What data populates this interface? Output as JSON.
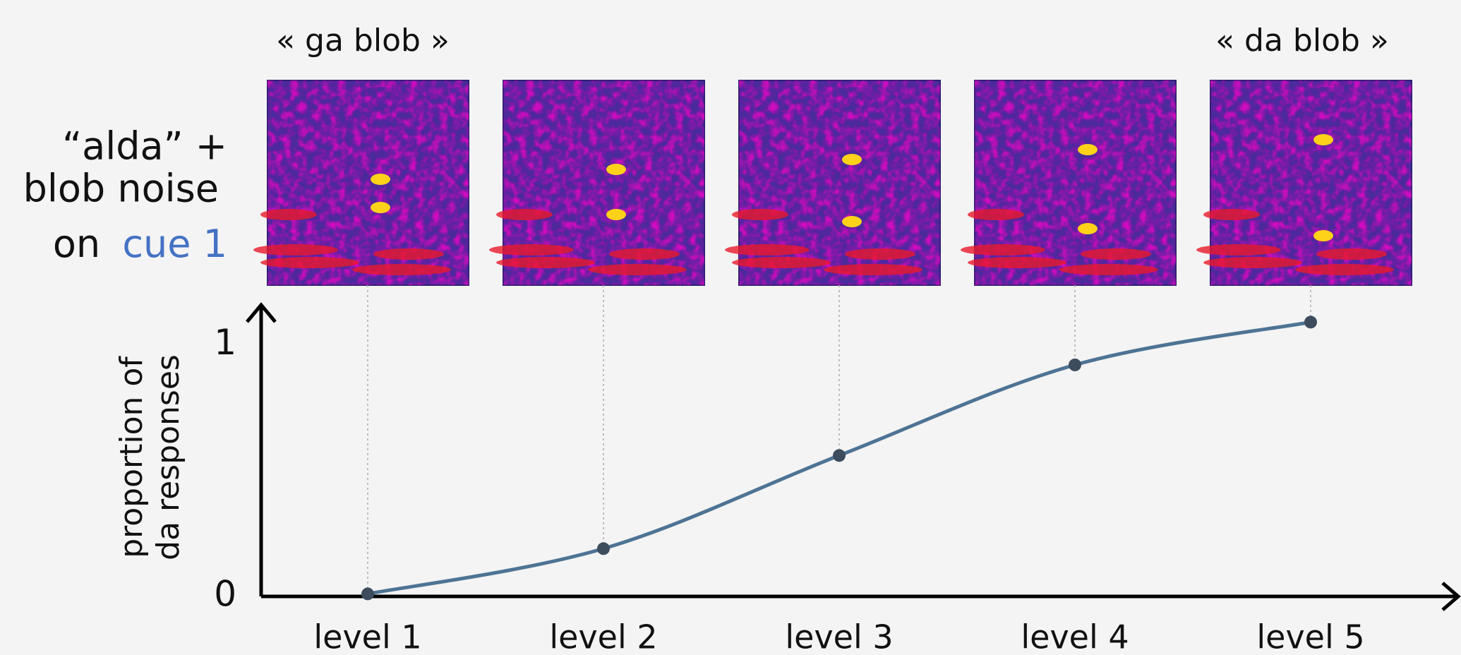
{
  "chart_data": {
    "type": "line",
    "y_label": [
      "proportion of",
      "da responses"
    ],
    "annotations": {
      "left_image": "« ga blob »",
      "right_image": "« da blob »"
    },
    "stimulus_label": {
      "lines": [
        "“alda” +",
        "blob noise"
      ],
      "prefix": "on",
      "highlight": "cue 1"
    },
    "categories": [
      "level 1",
      "level 2",
      "level 3",
      "level 4",
      "level 5"
    ],
    "values": [
      0.01,
      0.19,
      0.56,
      0.92,
      1.09
    ],
    "color": "#4e7394",
    "marker_color": "#3d4d5e",
    "highlight_color": "#4472c4",
    "ylim": [
      0,
      1.15
    ],
    "yticks": [
      0,
      1
    ]
  }
}
